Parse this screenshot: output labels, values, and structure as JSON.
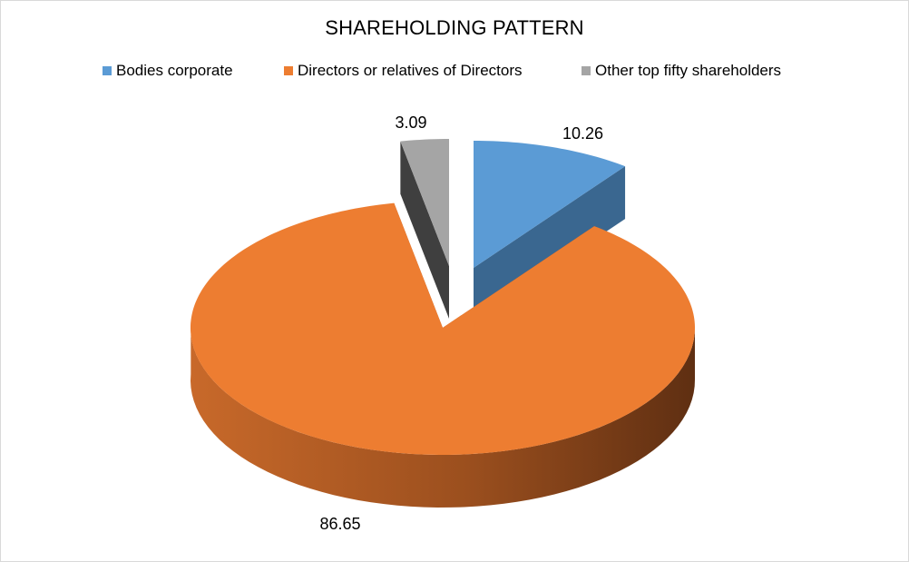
{
  "chart_data": {
    "type": "pie",
    "title": "SHAREHOLDING PATTERN",
    "legend_position": "top",
    "style": "3d-exploded",
    "series": [
      {
        "name": "Bodies corporate",
        "value": 10.26,
        "label": "10.26",
        "color": "#5B9BD5"
      },
      {
        "name": "Directors or relatives of Directors",
        "value": 86.65,
        "label": "86.65",
        "color": "#ED7D31"
      },
      {
        "name": "Other top fifty shareholders",
        "value": 3.09,
        "label": "3.09",
        "color": "#A5A5A5"
      }
    ]
  }
}
